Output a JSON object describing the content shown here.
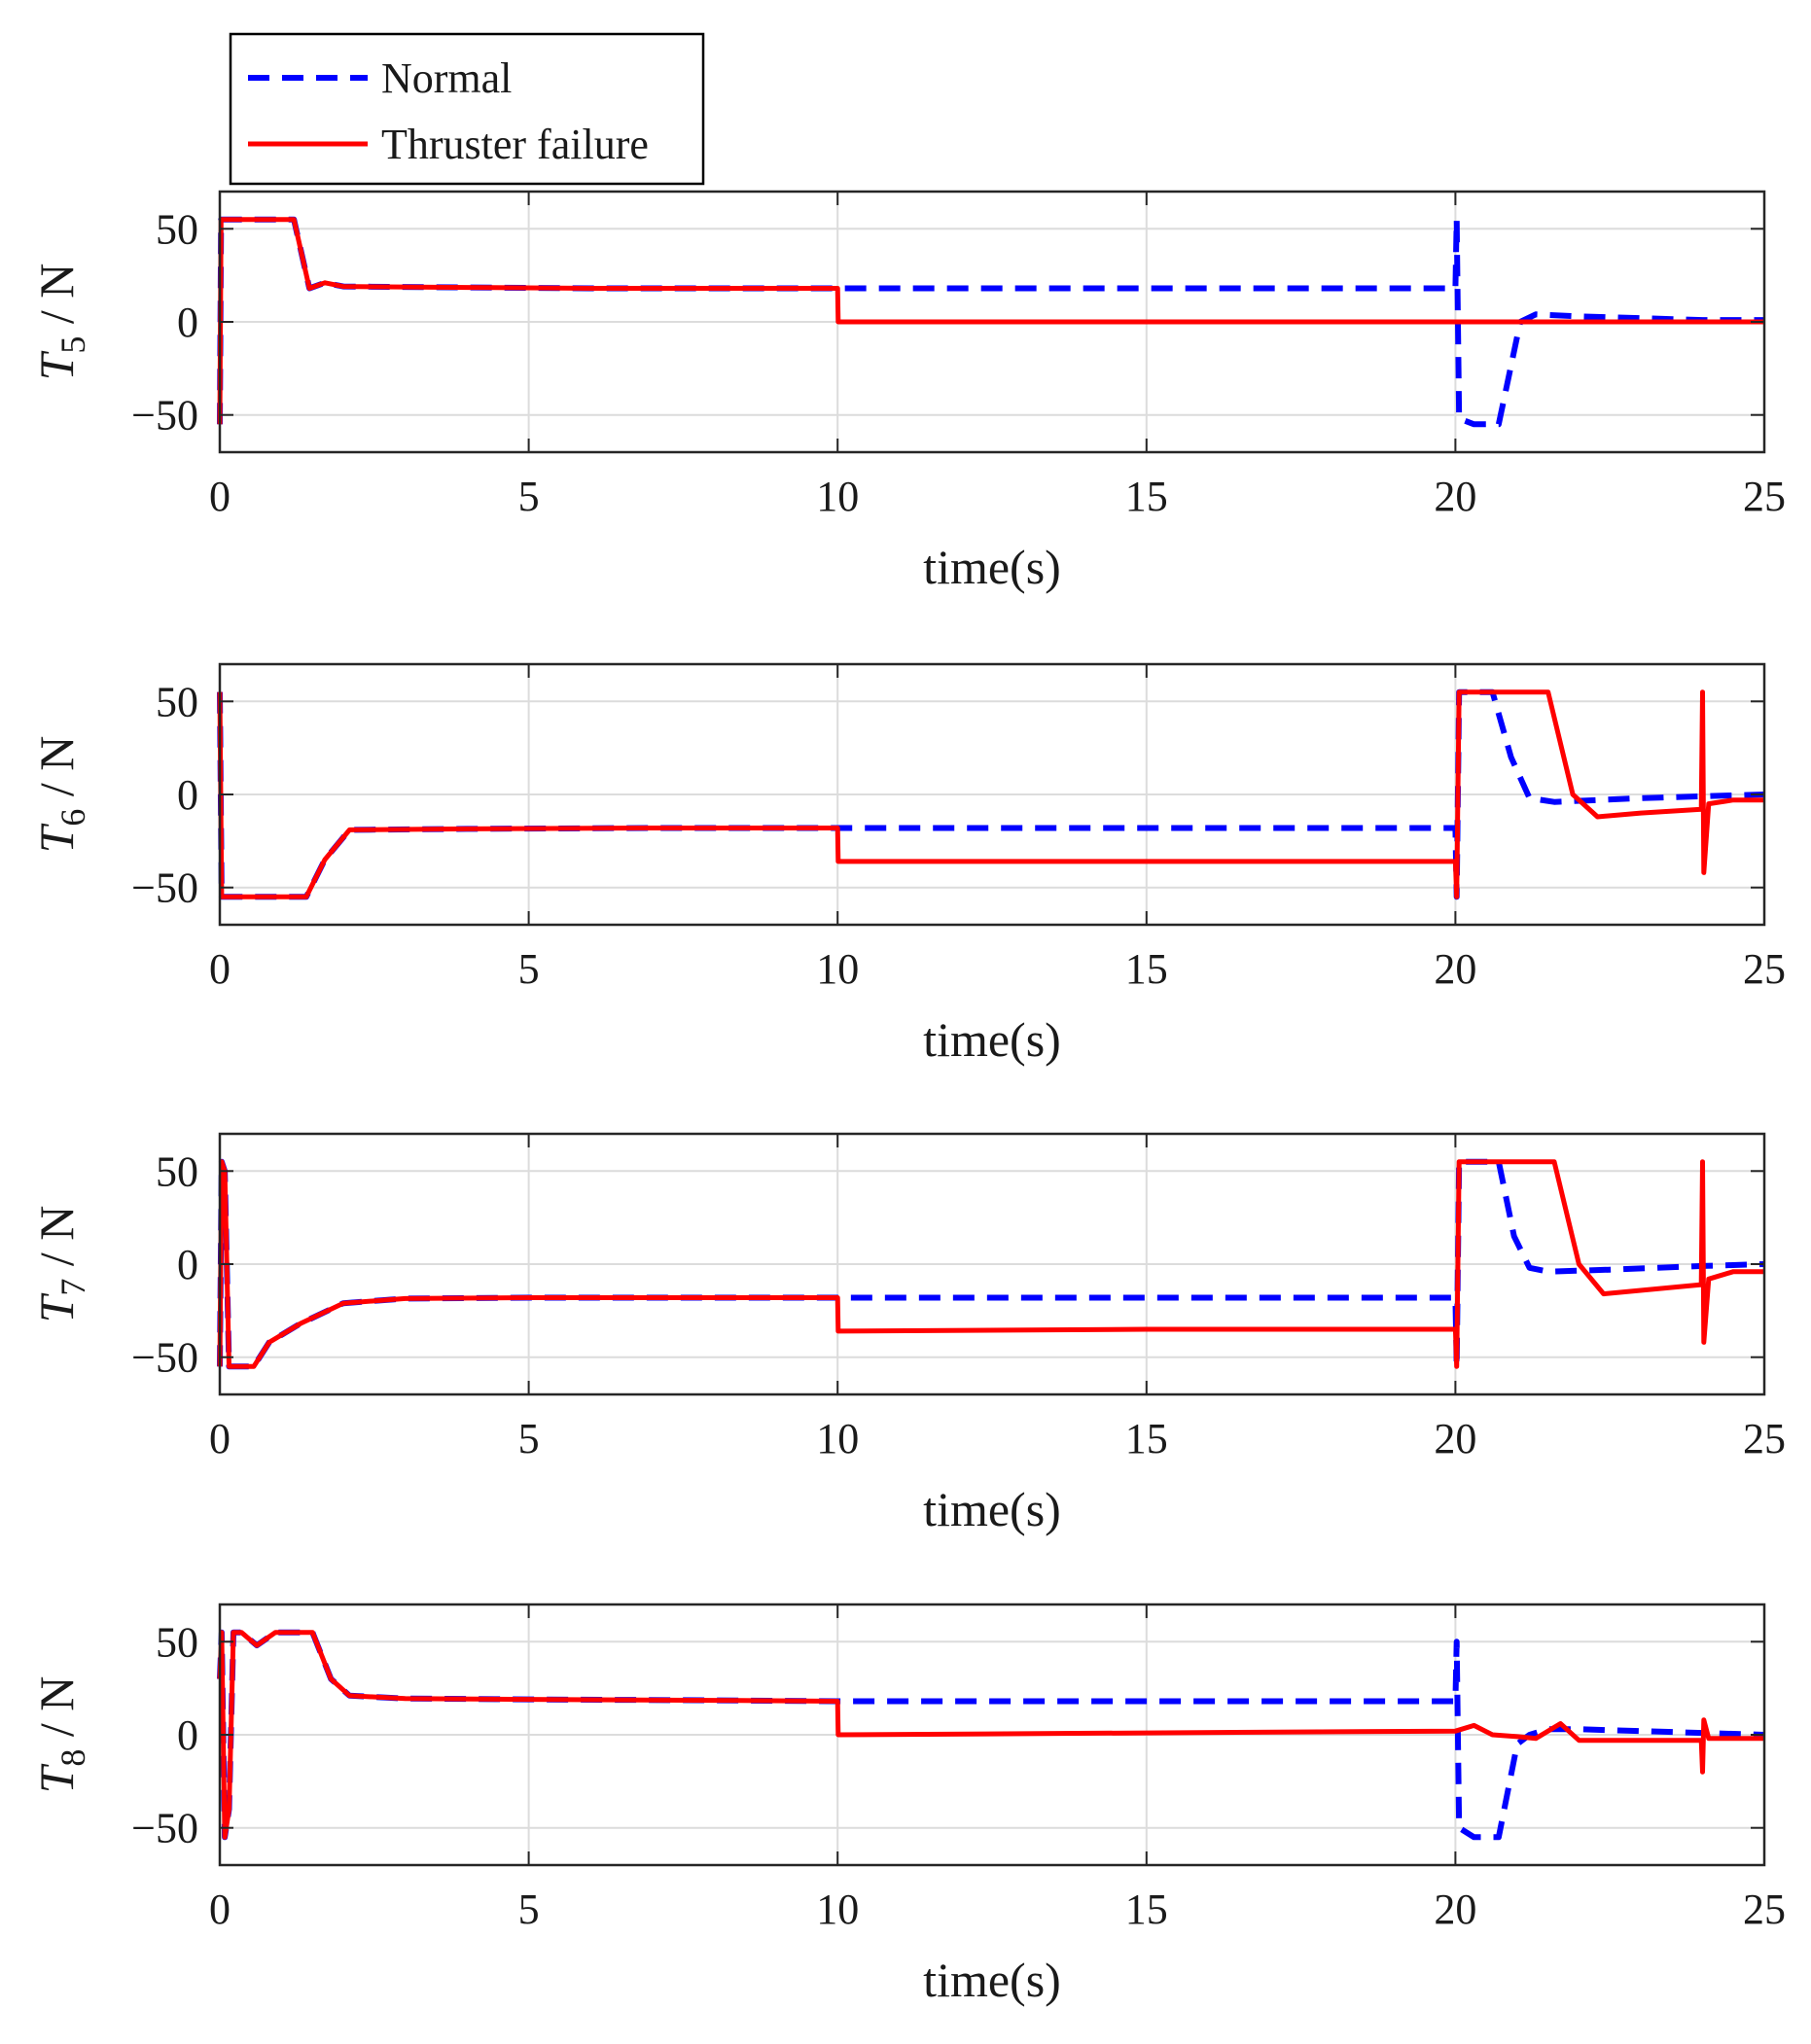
{
  "chart_data": [
    {
      "type": "line",
      "ylabel": "T",
      "ylabel_subscript": "5",
      "ylabel_unit": "/ N",
      "xlabel": "time(s)",
      "xlim": [
        0,
        25
      ],
      "ylim": [
        -70,
        70
      ],
      "xticks": [
        "0",
        "5",
        "10",
        "15",
        "20",
        "25"
      ],
      "yticks": [
        "-50",
        "0",
        "50"
      ],
      "grid": true,
      "series": [
        {
          "name": "Normal",
          "color": "#0000ff",
          "style": "dashed",
          "points": [
            [
              0,
              -55
            ],
            [
              0.02,
              55
            ],
            [
              1.2,
              55
            ],
            [
              1.45,
              18
            ],
            [
              1.7,
              21
            ],
            [
              2,
              19
            ],
            [
              4,
              18.5
            ],
            [
              6,
              18
            ],
            [
              8,
              18
            ],
            [
              10,
              18
            ],
            [
              15,
              18
            ],
            [
              20,
              18
            ],
            [
              20.02,
              55
            ],
            [
              20.06,
              -52
            ],
            [
              20.3,
              -55
            ],
            [
              20.7,
              -55
            ],
            [
              21.05,
              0
            ],
            [
              21.3,
              4
            ],
            [
              22,
              3
            ],
            [
              23,
              2
            ],
            [
              24,
              1
            ],
            [
              25,
              1
            ]
          ]
        },
        {
          "name": "Thruster failure",
          "color": "#ff0000",
          "style": "solid",
          "points": [
            [
              0,
              -55
            ],
            [
              0.02,
              55
            ],
            [
              1.2,
              55
            ],
            [
              1.45,
              18
            ],
            [
              1.7,
              21
            ],
            [
              2,
              19
            ],
            [
              4,
              18.5
            ],
            [
              6,
              18
            ],
            [
              8,
              18
            ],
            [
              10,
              18
            ],
            [
              10.01,
              0
            ],
            [
              15,
              0
            ],
            [
              20,
              0
            ],
            [
              25,
              0
            ]
          ]
        }
      ]
    },
    {
      "type": "line",
      "ylabel": "T",
      "ylabel_subscript": "6",
      "ylabel_unit": "/ N",
      "xlabel": "time(s)",
      "xlim": [
        0,
        25
      ],
      "ylim": [
        -70,
        70
      ],
      "xticks": [
        "0",
        "5",
        "10",
        "15",
        "20",
        "25"
      ],
      "yticks": [
        "-50",
        "0",
        "50"
      ],
      "grid": true,
      "series": [
        {
          "name": "Normal",
          "color": "#0000ff",
          "style": "dashed",
          "points": [
            [
              0,
              55
            ],
            [
              0.03,
              -55
            ],
            [
              1.4,
              -55
            ],
            [
              1.7,
              -35
            ],
            [
              2.1,
              -19
            ],
            [
              4,
              -18.5
            ],
            [
              7,
              -18
            ],
            [
              10,
              -18
            ],
            [
              15,
              -18
            ],
            [
              20,
              -18
            ],
            [
              20.02,
              -55
            ],
            [
              20.06,
              55
            ],
            [
              20.6,
              55
            ],
            [
              20.9,
              20
            ],
            [
              21.2,
              -2
            ],
            [
              21.6,
              -4
            ],
            [
              23,
              -2
            ],
            [
              24,
              -1
            ],
            [
              25,
              0
            ]
          ]
        },
        {
          "name": "Thruster failure",
          "color": "#ff0000",
          "style": "solid",
          "points": [
            [
              0,
              55
            ],
            [
              0.03,
              -55
            ],
            [
              1.4,
              -55
            ],
            [
              1.7,
              -35
            ],
            [
              2.1,
              -19
            ],
            [
              4,
              -18.5
            ],
            [
              7,
              -18
            ],
            [
              10,
              -18
            ],
            [
              10.01,
              -36
            ],
            [
              15,
              -36
            ],
            [
              20,
              -36
            ],
            [
              20.02,
              -55
            ],
            [
              20.06,
              55
            ],
            [
              21.5,
              55
            ],
            [
              21.9,
              0
            ],
            [
              22.3,
              -12
            ],
            [
              23,
              -10
            ],
            [
              23.98,
              -8
            ],
            [
              24,
              55
            ],
            [
              24.02,
              -42
            ],
            [
              24.1,
              -5
            ],
            [
              24.5,
              -3
            ],
            [
              25,
              -3
            ]
          ]
        }
      ]
    },
    {
      "type": "line",
      "ylabel": "T",
      "ylabel_subscript": "7",
      "ylabel_unit": "/ N",
      "xlabel": "time(s)",
      "xlim": [
        0,
        25
      ],
      "ylim": [
        -70,
        70
      ],
      "xticks": [
        "0",
        "5",
        "10",
        "15",
        "20",
        "25"
      ],
      "yticks": [
        "-50",
        "0",
        "50"
      ],
      "grid": true,
      "series": [
        {
          "name": "Normal",
          "color": "#0000ff",
          "style": "dashed",
          "points": [
            [
              0,
              -55
            ],
            [
              0.03,
              55
            ],
            [
              0.08,
              50
            ],
            [
              0.15,
              -55
            ],
            [
              0.55,
              -55
            ],
            [
              0.8,
              -42
            ],
            [
              1.3,
              -32
            ],
            [
              2,
              -21
            ],
            [
              3,
              -18.5
            ],
            [
              5,
              -18
            ],
            [
              8,
              -18
            ],
            [
              10,
              -18
            ],
            [
              15,
              -18
            ],
            [
              20,
              -18
            ],
            [
              20.02,
              -55
            ],
            [
              20.06,
              55
            ],
            [
              20.7,
              55
            ],
            [
              20.95,
              15
            ],
            [
              21.2,
              -2
            ],
            [
              21.5,
              -4
            ],
            [
              22.5,
              -3
            ],
            [
              24,
              -1
            ],
            [
              25,
              0
            ]
          ]
        },
        {
          "name": "Thruster failure",
          "color": "#ff0000",
          "style": "solid",
          "points": [
            [
              0,
              -55
            ],
            [
              0.03,
              55
            ],
            [
              0.08,
              50
            ],
            [
              0.15,
              -55
            ],
            [
              0.55,
              -55
            ],
            [
              0.8,
              -42
            ],
            [
              1.3,
              -32
            ],
            [
              2,
              -21
            ],
            [
              3,
              -18.5
            ],
            [
              5,
              -18
            ],
            [
              8,
              -18
            ],
            [
              10,
              -18
            ],
            [
              10.01,
              -36
            ],
            [
              15,
              -35
            ],
            [
              20,
              -35
            ],
            [
              20.02,
              -55
            ],
            [
              20.06,
              55
            ],
            [
              21.6,
              55
            ],
            [
              22,
              0
            ],
            [
              22.4,
              -16
            ],
            [
              23.98,
              -11
            ],
            [
              24,
              55
            ],
            [
              24.02,
              -42
            ],
            [
              24.1,
              -8
            ],
            [
              24.5,
              -4
            ],
            [
              25,
              -4
            ]
          ]
        }
      ]
    },
    {
      "type": "line",
      "ylabel": "T",
      "ylabel_subscript": "8",
      "ylabel_unit": "/ N",
      "xlabel": "time(s)",
      "xlim": [
        0,
        25
      ],
      "ylim": [
        -70,
        70
      ],
      "xticks": [
        "0",
        "5",
        "10",
        "15",
        "20",
        "25"
      ],
      "yticks": [
        "-50",
        "0",
        "50"
      ],
      "grid": true,
      "series": [
        {
          "name": "Normal",
          "color": "#0000ff",
          "style": "dashed",
          "points": [
            [
              0,
              30
            ],
            [
              0.03,
              55
            ],
            [
              0.08,
              -55
            ],
            [
              0.15,
              -40
            ],
            [
              0.22,
              55
            ],
            [
              0.35,
              55
            ],
            [
              0.6,
              48
            ],
            [
              0.9,
              55
            ],
            [
              1.5,
              55
            ],
            [
              1.8,
              30
            ],
            [
              2.1,
              21
            ],
            [
              3,
              19.5
            ],
            [
              5,
              19
            ],
            [
              8,
              18.5
            ],
            [
              10,
              18
            ],
            [
              15,
              18
            ],
            [
              20,
              18
            ],
            [
              20.02,
              50
            ],
            [
              20.06,
              -50
            ],
            [
              20.3,
              -55
            ],
            [
              20.7,
              -55
            ],
            [
              21,
              -5
            ],
            [
              21.2,
              0
            ],
            [
              21.5,
              3
            ],
            [
              22,
              3
            ],
            [
              23,
              2
            ],
            [
              24,
              1
            ],
            [
              25,
              0
            ]
          ]
        },
        {
          "name": "Thruster failure",
          "color": "#ff0000",
          "style": "solid",
          "points": [
            [
              0,
              30
            ],
            [
              0.03,
              55
            ],
            [
              0.08,
              -55
            ],
            [
              0.15,
              -40
            ],
            [
              0.22,
              55
            ],
            [
              0.35,
              55
            ],
            [
              0.6,
              48
            ],
            [
              0.9,
              55
            ],
            [
              1.5,
              55
            ],
            [
              1.8,
              30
            ],
            [
              2.1,
              21
            ],
            [
              3,
              19.5
            ],
            [
              5,
              19
            ],
            [
              8,
              18.5
            ],
            [
              10,
              18
            ],
            [
              10.01,
              0
            ],
            [
              15,
              1
            ],
            [
              20,
              2
            ],
            [
              20.3,
              5
            ],
            [
              20.6,
              0
            ],
            [
              21,
              -1
            ],
            [
              21.3,
              -2
            ],
            [
              21.7,
              6
            ],
            [
              22,
              -3
            ],
            [
              22.5,
              -3
            ],
            [
              23.98,
              -3
            ],
            [
              24,
              -20
            ],
            [
              24.02,
              8
            ],
            [
              24.1,
              -2
            ],
            [
              24.5,
              -2
            ],
            [
              25,
              -2
            ]
          ]
        }
      ]
    }
  ],
  "legend": {
    "entries": [
      "Normal",
      "Thruster failure"
    ],
    "placement": "top-left"
  }
}
